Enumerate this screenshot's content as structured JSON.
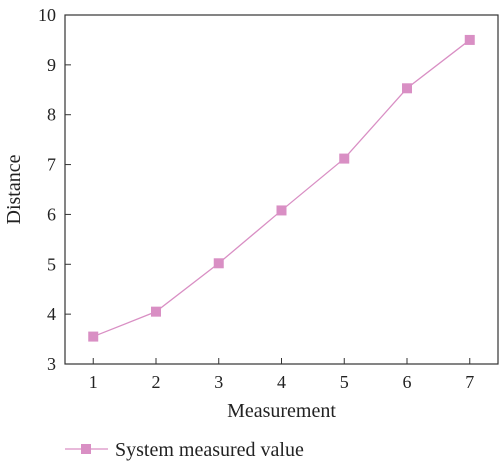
{
  "chart_data": {
    "type": "line",
    "xlabel": "Measurement",
    "ylabel": "Distance",
    "xlim": [
      0.55,
      7.45
    ],
    "ylim": [
      3,
      10
    ],
    "x_ticks": [
      1,
      2,
      3,
      4,
      5,
      6,
      7
    ],
    "y_ticks": [
      3,
      4,
      5,
      6,
      7,
      8,
      9,
      10
    ],
    "grid": false,
    "legend_position": "bottom-left",
    "series": [
      {
        "name": "System measured value",
        "color": "#d98fc4",
        "marker": "square",
        "x": [
          1,
          2,
          3,
          4,
          5,
          6,
          7
        ],
        "y": [
          3.55,
          4.05,
          5.02,
          6.08,
          7.12,
          8.53,
          9.5
        ]
      }
    ]
  }
}
